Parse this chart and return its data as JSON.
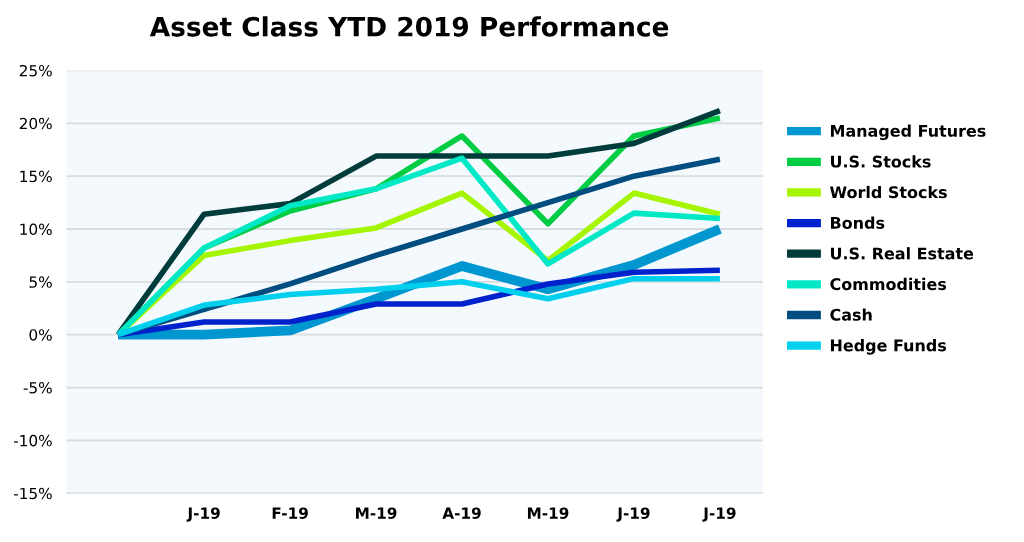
{
  "chart_data": {
    "type": "line",
    "title": "Asset Class YTD 2019 Performance",
    "categories": [
      null,
      "J-19",
      "F-19",
      "M-19",
      "A-19",
      "M-19",
      "J-19",
      "J-19"
    ],
    "series": [
      {
        "name": "Managed Futures",
        "color": "#0096d0",
        "values": [
          0,
          0,
          0.4,
          3.4,
          6.5,
          4.3,
          6.6,
          10.0
        ]
      },
      {
        "name": "U.S. Stocks",
        "color": "#00cc44",
        "values": [
          0,
          8.2,
          11.7,
          13.8,
          18.8,
          10.5,
          18.8,
          20.5
        ]
      },
      {
        "name": "World Stocks",
        "color": "#a6f500",
        "values": [
          0,
          7.5,
          8.9,
          10.1,
          13.4,
          7.0,
          13.4,
          11.4
        ]
      },
      {
        "name": "Bonds",
        "color": "#0022cc",
        "values": [
          0,
          1.2,
          1.2,
          2.9,
          2.9,
          4.8,
          5.9,
          6.1
        ]
      },
      {
        "name": "U.S. Real Estate",
        "color": "#003c3c",
        "values": [
          0,
          11.4,
          12.4,
          16.9,
          16.9,
          16.9,
          18.1,
          21.2
        ]
      },
      {
        "name": "Commodities",
        "color": "#00e8c6",
        "values": [
          0,
          8.2,
          12.2,
          13.8,
          16.7,
          6.7,
          11.5,
          11.0
        ]
      },
      {
        "name": "Cash",
        "color": "#004e80",
        "values": [
          0,
          2.4,
          4.8,
          7.5,
          10.0,
          12.5,
          15.0,
          16.6
        ]
      },
      {
        "name": "Hedge Funds",
        "color": "#00d0ee",
        "values": [
          0,
          2.8,
          3.8,
          4.3,
          5.0,
          3.4,
          5.3,
          5.3
        ]
      }
    ],
    "ylim": [
      -15,
      25
    ],
    "yticks": [
      {
        "value": -15,
        "label": "-15%"
      },
      {
        "value": -10,
        "label": "-10%"
      },
      {
        "value": -5,
        "label": "-5%"
      },
      {
        "value": 0,
        "label": "0%"
      },
      {
        "value": 5,
        "label": "5%"
      },
      {
        "value": 10,
        "label": "10%"
      },
      {
        "value": 15,
        "label": "15%"
      },
      {
        "value": 20,
        "label": "20%"
      },
      {
        "value": 25,
        "label": "25%"
      }
    ],
    "grid": "y",
    "legend": "right",
    "marker": "none",
    "line_style": "solid"
  }
}
